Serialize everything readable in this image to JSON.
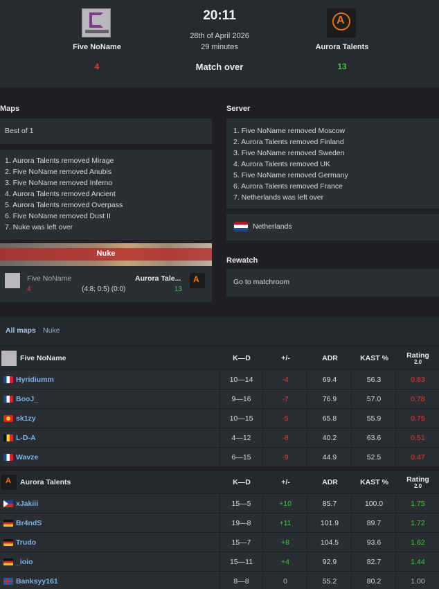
{
  "header": {
    "time": "20:11",
    "date": "28th of April 2026",
    "duration": "29 minutes",
    "status": "Match over",
    "team1": {
      "name": "Five NoName",
      "score": "4"
    },
    "team2": {
      "name": "Aurora Talents",
      "score": "13"
    }
  },
  "maps": {
    "label": "Maps",
    "format": "Best of 1",
    "veto": [
      "1. Aurora Talents removed Mirage",
      "2. Five NoName removed Anubis",
      "3. Five NoName removed Inferno",
      "4. Aurora Talents removed Ancient",
      "5. Aurora Talents removed Overpass",
      "6. Five NoName removed Dust II",
      "7. Nuke was left over"
    ],
    "result": {
      "map": "Nuke",
      "team1": "Five NoName",
      "team1_score": "4",
      "team2": "Aurora Tale...",
      "team2_score": "13",
      "halves": "(4:8; 0:5) (0:0)"
    }
  },
  "server": {
    "label": "Server",
    "veto": [
      "1. Five NoName removed Moscow",
      "2. Aurora Talents removed Finland",
      "3. Five NoName removed Sweden",
      "4. Aurora Talents removed UK",
      "5. Five NoName removed Germany",
      "6. Aurora Talents removed France",
      "7. Netherlands was left over"
    ],
    "location": "Netherlands"
  },
  "rewatch": {
    "label": "Rewatch",
    "link": "Go to matchroom"
  },
  "tabs": [
    "All maps",
    "Nuke"
  ],
  "columns": {
    "kd": "K—D",
    "pm": "+/-",
    "adr": "ADR",
    "kast": "KAST %",
    "rating": "Rating",
    "rating_sub": "2.0"
  },
  "team1_stats": {
    "name": "Five NoName",
    "players": [
      {
        "name": "Hyridiumm",
        "flag": "fr",
        "kd": "10—14",
        "pm": "-4",
        "adr": "69.4",
        "kast": "56.3",
        "rating": "0.83"
      },
      {
        "name": "BooJ_",
        "flag": "fr",
        "kd": "9—16",
        "pm": "-7",
        "adr": "76.9",
        "kast": "57.0",
        "rating": "0.78"
      },
      {
        "name": "sk1zy",
        "flag": "kg",
        "kd": "10—15",
        "pm": "-5",
        "adr": "65.8",
        "kast": "55.9",
        "rating": "0.75"
      },
      {
        "name": "L-D-A",
        "flag": "be",
        "kd": "4—12",
        "pm": "-8",
        "adr": "40.2",
        "kast": "63.6",
        "rating": "0.51"
      },
      {
        "name": "Wavze",
        "flag": "fr",
        "kd": "6—15",
        "pm": "-9",
        "adr": "44.9",
        "kast": "52.5",
        "rating": "0.47"
      }
    ]
  },
  "team2_stats": {
    "name": "Aurora Talents",
    "players": [
      {
        "name": "xJakiii",
        "flag": "ph",
        "kd": "15—5",
        "pm": "+10",
        "adr": "85.7",
        "kast": "100.0",
        "rating": "1.75"
      },
      {
        "name": "Br4ndS",
        "flag": "de",
        "kd": "19—8",
        "pm": "+11",
        "adr": "101.9",
        "kast": "89.7",
        "rating": "1.72"
      },
      {
        "name": "Trudo",
        "flag": "de",
        "kd": "15—7",
        "pm": "+8",
        "adr": "104.5",
        "kast": "93.6",
        "rating": "1.62"
      },
      {
        "name": "_ioio",
        "flag": "de",
        "kd": "15—11",
        "pm": "+4",
        "adr": "92.9",
        "kast": "82.7",
        "rating": "1.44"
      },
      {
        "name": "Banksyy161",
        "flag": "is",
        "kd": "8—8",
        "pm": "0",
        "adr": "55.2",
        "kast": "80.2",
        "rating": "1.00"
      }
    ]
  }
}
